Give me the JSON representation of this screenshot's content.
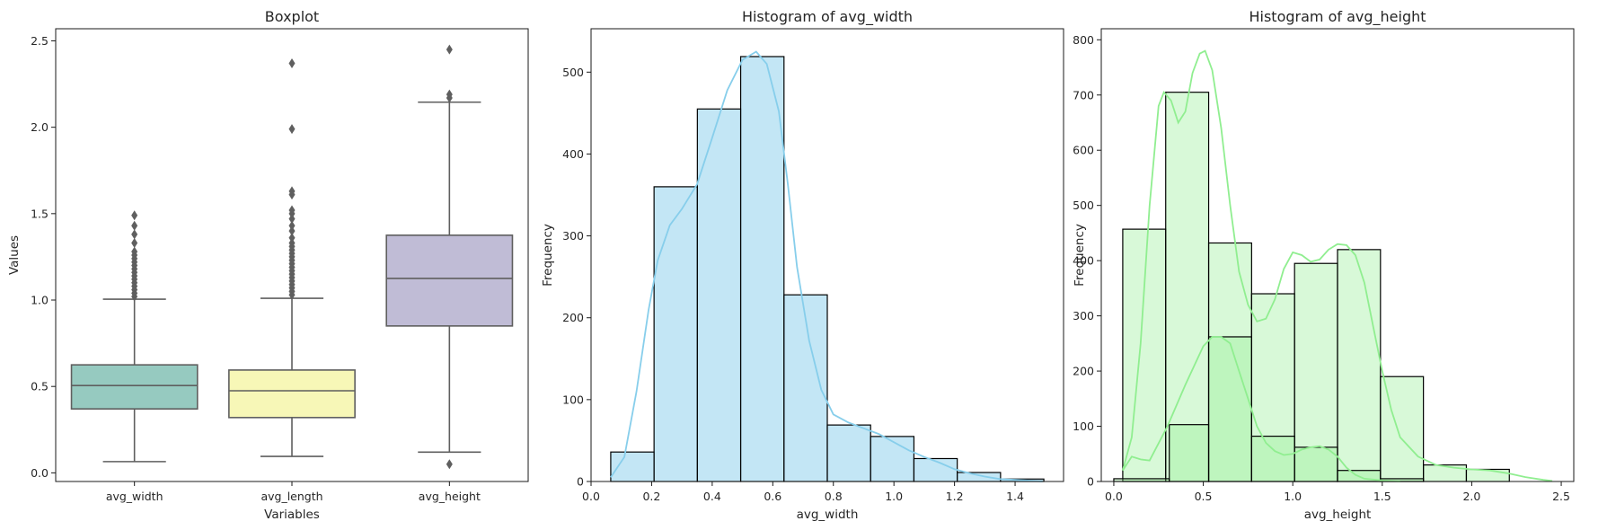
{
  "chart_data": [
    {
      "type": "box",
      "title": "Boxplot",
      "xlabel": "Variables",
      "ylabel": "Values",
      "ylim": [
        -0.05,
        2.57
      ],
      "yticks": [
        "0.0",
        "0.5",
        "1.0",
        "1.5",
        "2.0",
        "2.5"
      ],
      "categories": [
        "avg_width",
        "avg_length",
        "avg_height"
      ],
      "colors": [
        "#96cac0",
        "#f7f7b7",
        "#c0bcd6"
      ],
      "boxes": [
        {
          "whislo": 0.065,
          "q1": 0.37,
          "med": 0.505,
          "q3": 0.625,
          "whishi": 1.005,
          "fliers": [
            1.02,
            1.04,
            1.06,
            1.08,
            1.1,
            1.12,
            1.14,
            1.16,
            1.18,
            1.2,
            1.22,
            1.24,
            1.26,
            1.28,
            1.33,
            1.38,
            1.43,
            1.49
          ]
        },
        {
          "whislo": 0.095,
          "q1": 0.32,
          "med": 0.475,
          "q3": 0.595,
          "whishi": 1.01,
          "fliers": [
            1.03,
            1.05,
            1.07,
            1.09,
            1.11,
            1.13,
            1.15,
            1.17,
            1.19,
            1.21,
            1.23,
            1.25,
            1.27,
            1.29,
            1.31,
            1.33,
            1.36,
            1.4,
            1.43,
            1.47,
            1.5,
            1.52,
            1.61,
            1.63,
            1.99,
            2.37
          ]
        },
        {
          "whislo": 0.12,
          "q1": 0.85,
          "med": 1.125,
          "q3": 1.375,
          "whishi": 2.145,
          "fliers": [
            0.05,
            2.17,
            2.19,
            2.45
          ]
        }
      ]
    },
    {
      "type": "histogram",
      "title": "Histogram of avg_width",
      "xlabel": "avg_width",
      "ylabel": "Frequency",
      "xlim": [
        0.0,
        1.56
      ],
      "ylim": [
        0,
        553
      ],
      "xticks": [
        "0.0",
        "0.2",
        "0.4",
        "0.6",
        "0.8",
        "1.0",
        "1.2",
        "1.4"
      ],
      "yticks": [
        "0",
        "100",
        "200",
        "300",
        "400",
        "500"
      ],
      "color": "#87ceeb",
      "series": [
        {
          "bin_edges": [
            0.065,
            0.208,
            0.351,
            0.494,
            0.637,
            0.78,
            0.923,
            1.066,
            1.209,
            1.352,
            1.495
          ],
          "counts": [
            36,
            360,
            455,
            519,
            228,
            69,
            55,
            28,
            11,
            3
          ],
          "kde": [
            [
              0.065,
              5
            ],
            [
              0.11,
              30
            ],
            [
              0.15,
              110
            ],
            [
              0.19,
              210
            ],
            [
              0.22,
              270
            ],
            [
              0.26,
              313
            ],
            [
              0.3,
              333
            ],
            [
              0.35,
              363
            ],
            [
              0.4,
              420
            ],
            [
              0.45,
              478
            ],
            [
              0.5,
              515
            ],
            [
              0.545,
              525
            ],
            [
              0.58,
              510
            ],
            [
              0.62,
              452
            ],
            [
              0.65,
              362
            ],
            [
              0.68,
              262
            ],
            [
              0.72,
              172
            ],
            [
              0.76,
              112
            ],
            [
              0.8,
              82
            ],
            [
              0.85,
              72
            ],
            [
              0.9,
              65
            ],
            [
              0.95,
              58
            ],
            [
              1.0,
              48
            ],
            [
              1.05,
              38
            ],
            [
              1.1,
              30
            ],
            [
              1.15,
              23
            ],
            [
              1.2,
              15
            ],
            [
              1.25,
              10
            ],
            [
              1.3,
              6
            ],
            [
              1.35,
              3
            ],
            [
              1.4,
              2
            ],
            [
              1.45,
              1
            ],
            [
              1.49,
              0
            ]
          ]
        }
      ]
    },
    {
      "type": "histogram",
      "title": "Histogram of avg_height",
      "xlabel": "avg_height",
      "ylabel": "Frequency",
      "xlim": [
        -0.07,
        2.57
      ],
      "ylim": [
        0,
        820
      ],
      "xticks": [
        "0.0",
        "0.5",
        "1.0",
        "1.5",
        "2.0",
        "2.5"
      ],
      "yticks": [
        "0",
        "100",
        "200",
        "300",
        "400",
        "500",
        "600",
        "700",
        "800"
      ],
      "color": "#90ee90",
      "series": [
        {
          "bin_edges": [
            0.05,
            0.29,
            0.53,
            0.77,
            1.01,
            1.25,
            1.49,
            1.73,
            1.97,
            2.21
          ],
          "counts": [
            457,
            705,
            432,
            340,
            395,
            420,
            190,
            30,
            22
          ],
          "kde": [
            [
              0.05,
              20
            ],
            [
              0.1,
              80
            ],
            [
              0.15,
              250
            ],
            [
              0.2,
              500
            ],
            [
              0.25,
              680
            ],
            [
              0.28,
              705
            ],
            [
              0.32,
              690
            ],
            [
              0.36,
              650
            ],
            [
              0.4,
              670
            ],
            [
              0.44,
              740
            ],
            [
              0.48,
              775
            ],
            [
              0.51,
              780
            ],
            [
              0.55,
              745
            ],
            [
              0.6,
              640
            ],
            [
              0.65,
              500
            ],
            [
              0.7,
              380
            ],
            [
              0.75,
              320
            ],
            [
              0.8,
              290
            ],
            [
              0.85,
              295
            ],
            [
              0.9,
              330
            ],
            [
              0.95,
              385
            ],
            [
              1.0,
              415
            ],
            [
              1.05,
              410
            ],
            [
              1.1,
              398
            ],
            [
              1.15,
              402
            ],
            [
              1.2,
              420
            ],
            [
              1.25,
              430
            ],
            [
              1.3,
              428
            ],
            [
              1.35,
              410
            ],
            [
              1.4,
              360
            ],
            [
              1.45,
              280
            ],
            [
              1.5,
              200
            ],
            [
              1.55,
              130
            ],
            [
              1.6,
              80
            ],
            [
              1.7,
              45
            ],
            [
              1.8,
              30
            ],
            [
              1.9,
              25
            ],
            [
              2.0,
              22
            ],
            [
              2.1,
              20
            ],
            [
              2.2,
              15
            ],
            [
              2.3,
              8
            ],
            [
              2.4,
              3
            ],
            [
              2.45,
              1
            ]
          ]
        },
        {
          "bin_edges": [
            0.0,
            0.31,
            0.53,
            0.77,
            1.01,
            1.25,
            1.49,
            1.73
          ],
          "counts": [
            5,
            103,
            262,
            82,
            62,
            20,
            5
          ],
          "kde": [
            [
              0.05,
              20
            ],
            [
              0.1,
              45
            ],
            [
              0.15,
              40
            ],
            [
              0.2,
              38
            ],
            [
              0.3,
              100
            ],
            [
              0.4,
              175
            ],
            [
              0.5,
              245
            ],
            [
              0.55,
              262
            ],
            [
              0.6,
              262
            ],
            [
              0.65,
              250
            ],
            [
              0.7,
              200
            ],
            [
              0.75,
              150
            ],
            [
              0.8,
              100
            ],
            [
              0.85,
              70
            ],
            [
              0.9,
              55
            ],
            [
              0.95,
              48
            ],
            [
              1.0,
              50
            ],
            [
              1.05,
              58
            ],
            [
              1.1,
              62
            ],
            [
              1.15,
              64
            ],
            [
              1.2,
              58
            ],
            [
              1.25,
              45
            ],
            [
              1.3,
              25
            ],
            [
              1.35,
              12
            ],
            [
              1.4,
              5
            ],
            [
              1.5,
              2
            ],
            [
              1.6,
              0
            ]
          ]
        }
      ]
    }
  ]
}
